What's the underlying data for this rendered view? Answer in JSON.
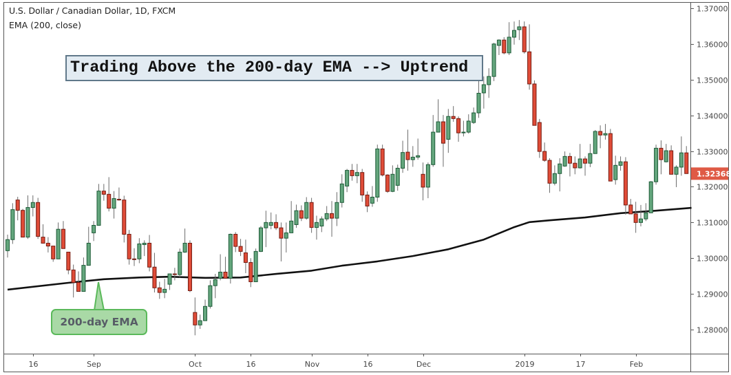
{
  "header": {
    "title": "U.S. Dollar / Canadian Dollar, 1D, FXCM",
    "indicator": "EMA (200, close)"
  },
  "annotations": {
    "banner": "Trading Above the 200-day EMA --> Uptrend",
    "callout": "200-day EMA"
  },
  "colors": {
    "up_fill": "#64a67d",
    "up_border": "#1d5a37",
    "down_fill": "#e04c38",
    "down_border": "#731a10",
    "wick": "#6b6b6b",
    "ema": "#111111",
    "last_price_bg": "#df5a45"
  },
  "chart_data": {
    "type": "candlestick",
    "title": "U.S. Dollar / Canadian Dollar, 1D, FXCM",
    "ylim": [
      1.2755,
      1.3715
    ],
    "y_ticks": [
      "1.28000",
      "1.29000",
      "1.30000",
      "1.31000",
      "1.32000",
      "1.33000",
      "1.34000",
      "1.35000",
      "1.36000",
      "1.37000"
    ],
    "last_price": "1.32368",
    "x_ticks": [
      {
        "bar": 5,
        "label": "16"
      },
      {
        "bar": 17,
        "label": "Sep"
      },
      {
        "bar": 37,
        "label": "Oct"
      },
      {
        "bar": 48,
        "label": "16"
      },
      {
        "bar": 60,
        "label": "Nov"
      },
      {
        "bar": 71,
        "label": "16"
      },
      {
        "bar": 82,
        "label": "Dec"
      },
      {
        "bar": 102,
        "label": "2019"
      },
      {
        "bar": 113,
        "label": "17"
      },
      {
        "bar": 124,
        "label": "Feb"
      }
    ],
    "ohlc_fields": [
      "open",
      "high",
      "low",
      "close"
    ],
    "candles": [
      [
        1.3021,
        1.3066,
        1.3002,
        1.3052
      ],
      [
        1.3052,
        1.3154,
        1.304,
        1.3136
      ],
      [
        1.3163,
        1.3172,
        1.3106,
        1.3134
      ],
      [
        1.3134,
        1.3138,
        1.3059,
        1.3059
      ],
      [
        1.3059,
        1.3176,
        1.3054,
        1.3142
      ],
      [
        1.3142,
        1.3176,
        1.3117,
        1.3156
      ],
      [
        1.3156,
        1.3169,
        1.3054,
        1.3061
      ],
      [
        1.3059,
        1.3095,
        1.3042,
        1.3042
      ],
      [
        1.3042,
        1.3059,
        1.3016,
        1.3034
      ],
      [
        1.3034,
        1.3034,
        1.299,
        1.2998
      ],
      [
        1.2998,
        1.31,
        1.2998,
        1.3081
      ],
      [
        1.3081,
        1.3104,
        1.3027,
        1.3027
      ],
      [
        1.3017,
        1.3017,
        1.2955,
        1.2967
      ],
      [
        1.2967,
        1.2982,
        1.289,
        1.2932
      ],
      [
        1.2932,
        1.2963,
        1.2907,
        1.2907
      ],
      [
        1.2907,
        1.3002,
        1.2907,
        1.298
      ],
      [
        1.298,
        1.3088,
        1.298,
        1.3042
      ],
      [
        1.3071,
        1.3104,
        1.3048,
        1.3092
      ],
      [
        1.3092,
        1.3208,
        1.3092,
        1.3188
      ],
      [
        1.3188,
        1.3208,
        1.3161,
        1.3179
      ],
      [
        1.3179,
        1.3227,
        1.3131,
        1.314
      ],
      [
        1.314,
        1.3188,
        1.3111,
        1.3167
      ],
      [
        1.3165,
        1.3198,
        1.3161,
        1.3163
      ],
      [
        1.3163,
        1.3175,
        1.3044,
        1.3067
      ],
      [
        1.3067,
        1.3079,
        1.2982,
        1.2998
      ],
      [
        1.2998,
        1.3028,
        1.2978,
        1.2997
      ],
      [
        1.2998,
        1.3056,
        1.2986,
        1.304
      ],
      [
        1.3038,
        1.305,
        1.3006,
        1.3042
      ],
      [
        1.3042,
        1.3065,
        1.2963,
        1.2975
      ],
      [
        1.2975,
        1.3015,
        1.2904,
        1.2917
      ],
      [
        1.2917,
        1.2934,
        1.2886,
        1.2904
      ],
      [
        1.2904,
        1.2942,
        1.2888,
        1.2913
      ],
      [
        1.2927,
        1.2956,
        1.2911,
        1.2956
      ],
      [
        1.2956,
        1.2973,
        1.2938,
        1.2954
      ],
      [
        1.2954,
        1.3027,
        1.2946,
        1.3017
      ],
      [
        1.3017,
        1.3083,
        1.3015,
        1.3042
      ],
      [
        1.3042,
        1.305,
        1.2905,
        1.2909
      ],
      [
        1.2848,
        1.289,
        1.2784,
        1.2813
      ],
      [
        1.2813,
        1.2842,
        1.2802,
        1.2825
      ],
      [
        1.2825,
        1.2884,
        1.2825,
        1.2865
      ],
      [
        1.2865,
        1.2938,
        1.2859,
        1.2923
      ],
      [
        1.2923,
        1.2956,
        1.2888,
        1.294
      ],
      [
        1.2944,
        1.3011,
        1.2938,
        1.2961
      ],
      [
        1.2961,
        1.3004,
        1.2944,
        1.2944
      ],
      [
        1.2944,
        1.3069,
        1.2929,
        1.3067
      ],
      [
        1.3067,
        1.3073,
        1.3017,
        1.3033
      ],
      [
        1.3033,
        1.3054,
        1.3006,
        1.3019
      ],
      [
        1.3015,
        1.3052,
        1.2958,
        1.2988
      ],
      [
        1.2988,
        1.3,
        1.2919,
        1.2934
      ],
      [
        1.2934,
        1.3027,
        1.2934,
        1.3019
      ],
      [
        1.3019,
        1.309,
        1.3017,
        1.3085
      ],
      [
        1.3085,
        1.3133,
        1.3031,
        1.31
      ],
      [
        1.3092,
        1.3128,
        1.3081,
        1.31
      ],
      [
        1.31,
        1.3123,
        1.3079,
        1.3085
      ],
      [
        1.3085,
        1.31,
        1.2991,
        1.3056
      ],
      [
        1.3056,
        1.31,
        1.3016,
        1.3071
      ],
      [
        1.3071,
        1.316,
        1.3071,
        1.3104
      ],
      [
        1.3094,
        1.315,
        1.3085,
        1.3133
      ],
      [
        1.3133,
        1.3148,
        1.3104,
        1.3112
      ],
      [
        1.3112,
        1.3171,
        1.3108,
        1.3156
      ],
      [
        1.3156,
        1.3169,
        1.3071,
        1.3086
      ],
      [
        1.3086,
        1.3119,
        1.3052,
        1.31
      ],
      [
        1.309,
        1.3117,
        1.3073,
        1.311
      ],
      [
        1.311,
        1.3146,
        1.3104,
        1.3125
      ],
      [
        1.3125,
        1.316,
        1.306,
        1.3112
      ],
      [
        1.3112,
        1.3185,
        1.309,
        1.3156
      ],
      [
        1.3156,
        1.3235,
        1.3142,
        1.3208
      ],
      [
        1.3202,
        1.325,
        1.3185,
        1.3246
      ],
      [
        1.3246,
        1.3264,
        1.3217,
        1.3231
      ],
      [
        1.3231,
        1.3264,
        1.321,
        1.324
      ],
      [
        1.324,
        1.325,
        1.3158,
        1.3177
      ],
      [
        1.3177,
        1.3187,
        1.3129,
        1.3146
      ],
      [
        1.3154,
        1.3202,
        1.3144,
        1.3171
      ],
      [
        1.3171,
        1.3318,
        1.3158,
        1.3306
      ],
      [
        1.3306,
        1.3318,
        1.3229,
        1.3233
      ],
      [
        1.3233,
        1.3235,
        1.3183,
        1.3187
      ],
      [
        1.3187,
        1.326,
        1.3185,
        1.3235
      ],
      [
        1.3204,
        1.3262,
        1.3189,
        1.3252
      ],
      [
        1.3252,
        1.3329,
        1.3239,
        1.3296
      ],
      [
        1.3297,
        1.336,
        1.3245,
        1.3276
      ],
      [
        1.3276,
        1.3314,
        1.3256,
        1.3283
      ],
      [
        1.3283,
        1.3335,
        1.3276,
        1.3287
      ],
      [
        1.3235,
        1.3268,
        1.3162,
        1.3199
      ],
      [
        1.3199,
        1.3268,
        1.3168,
        1.3262
      ],
      [
        1.3262,
        1.3401,
        1.3256,
        1.3353
      ],
      [
        1.3353,
        1.3445,
        1.3353,
        1.3382
      ],
      [
        1.3382,
        1.3401,
        1.3256,
        1.3322
      ],
      [
        1.3333,
        1.3418,
        1.3295,
        1.3397
      ],
      [
        1.3397,
        1.3426,
        1.3382,
        1.3391
      ],
      [
        1.3391,
        1.3397,
        1.3326,
        1.3351
      ],
      [
        1.3351,
        1.3385,
        1.3341,
        1.3353
      ],
      [
        1.3353,
        1.3403,
        1.3349,
        1.3384
      ],
      [
        1.338,
        1.3422,
        1.3376,
        1.3407
      ],
      [
        1.3407,
        1.35,
        1.3393,
        1.3462
      ],
      [
        1.3463,
        1.3509,
        1.3419,
        1.3486
      ],
      [
        1.3486,
        1.3532,
        1.3449,
        1.3509
      ],
      [
        1.3509,
        1.3603,
        1.3496,
        1.36
      ],
      [
        1.3596,
        1.3613,
        1.3569,
        1.3611
      ],
      [
        1.3611,
        1.3619,
        1.3571,
        1.3575
      ],
      [
        1.3575,
        1.3661,
        1.3569,
        1.3619
      ],
      [
        1.3619,
        1.3663,
        1.3598,
        1.3638
      ],
      [
        1.364,
        1.3667,
        1.3611,
        1.3648
      ],
      [
        1.3648,
        1.3663,
        1.3573,
        1.3578
      ],
      [
        1.3578,
        1.3655,
        1.3472,
        1.3488
      ],
      [
        1.3488,
        1.3498,
        1.3372,
        1.3372
      ],
      [
        1.338,
        1.339,
        1.3281,
        1.3299
      ],
      [
        1.3299,
        1.3324,
        1.327,
        1.3274
      ],
      [
        1.3274,
        1.328,
        1.3183,
        1.321
      ],
      [
        1.321,
        1.326,
        1.3204,
        1.3237
      ],
      [
        1.3237,
        1.328,
        1.3187,
        1.3264
      ],
      [
        1.3258,
        1.3299,
        1.3256,
        1.3285
      ],
      [
        1.3285,
        1.3295,
        1.3229,
        1.3266
      ],
      [
        1.3266,
        1.3285,
        1.3235,
        1.3253
      ],
      [
        1.3253,
        1.332,
        1.3251,
        1.3278
      ],
      [
        1.3278,
        1.3285,
        1.3231,
        1.3266
      ],
      [
        1.3266,
        1.332,
        1.3255,
        1.3293
      ],
      [
        1.3293,
        1.3359,
        1.3293,
        1.3355
      ],
      [
        1.3355,
        1.3372,
        1.3308,
        1.3345
      ],
      [
        1.3345,
        1.3376,
        1.3332,
        1.3349
      ],
      [
        1.3349,
        1.3362,
        1.3216,
        1.3216
      ],
      [
        1.322,
        1.3287,
        1.3206,
        1.326
      ],
      [
        1.326,
        1.3285,
        1.3245,
        1.327
      ],
      [
        1.327,
        1.3283,
        1.3122,
        1.3149
      ],
      [
        1.3149,
        1.3166,
        1.3124,
        1.3124
      ],
      [
        1.3124,
        1.3158,
        1.3071,
        1.31
      ],
      [
        1.31,
        1.3149,
        1.3089,
        1.311
      ],
      [
        1.311,
        1.3154,
        1.3104,
        1.3127
      ],
      [
        1.3127,
        1.3216,
        1.3127,
        1.3214
      ],
      [
        1.3214,
        1.3318,
        1.3206,
        1.3308
      ],
      [
        1.3308,
        1.333,
        1.3235,
        1.3276
      ],
      [
        1.327,
        1.332,
        1.3268,
        1.3301
      ],
      [
        1.3301,
        1.3316,
        1.3235,
        1.3235
      ],
      [
        1.3235,
        1.326,
        1.3199,
        1.3255
      ],
      [
        1.3255,
        1.3341,
        1.3231,
        1.3295
      ],
      [
        1.3295,
        1.3314,
        1.3237,
        1.3237
      ]
    ],
    "ema": {
      "name": "EMA (200, close)",
      "points": [
        [
          0,
          1.2912
        ],
        [
          12,
          1.2931
        ],
        [
          19,
          1.2941
        ],
        [
          26,
          1.2946
        ],
        [
          32,
          1.2948
        ],
        [
          39,
          1.2945
        ],
        [
          46,
          1.2946
        ],
        [
          53,
          1.2956
        ],
        [
          60,
          1.2965
        ],
        [
          66,
          1.2979
        ],
        [
          73,
          1.2991
        ],
        [
          80,
          1.3006
        ],
        [
          87,
          1.3025
        ],
        [
          94,
          1.3052
        ],
        [
          100,
          1.3087
        ],
        [
          103,
          1.3101
        ],
        [
          107,
          1.3106
        ],
        [
          114,
          1.3114
        ],
        [
          121,
          1.3126
        ],
        [
          128,
          1.3133
        ],
        [
          135,
          1.3141
        ]
      ]
    }
  }
}
